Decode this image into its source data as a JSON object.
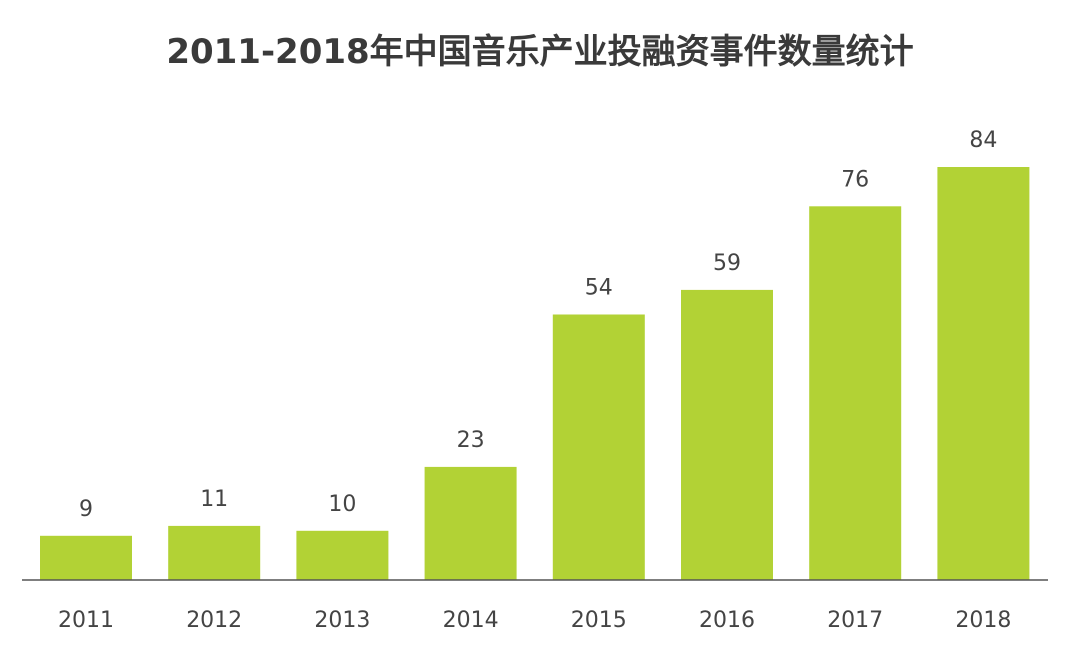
{
  "chart_data": {
    "type": "bar",
    "title": "2011-2018年中国音乐产业投融资事件数量统计",
    "categories": [
      "2011",
      "2012",
      "2013",
      "2014",
      "2015",
      "2016",
      "2017",
      "2018"
    ],
    "values": [
      9,
      11,
      10,
      23,
      54,
      59,
      76,
      84
    ],
    "xlabel": "",
    "ylabel": "",
    "ylim": [
      0,
      84
    ],
    "grid": false,
    "legend": "none",
    "bar_color": "#b2d235"
  }
}
